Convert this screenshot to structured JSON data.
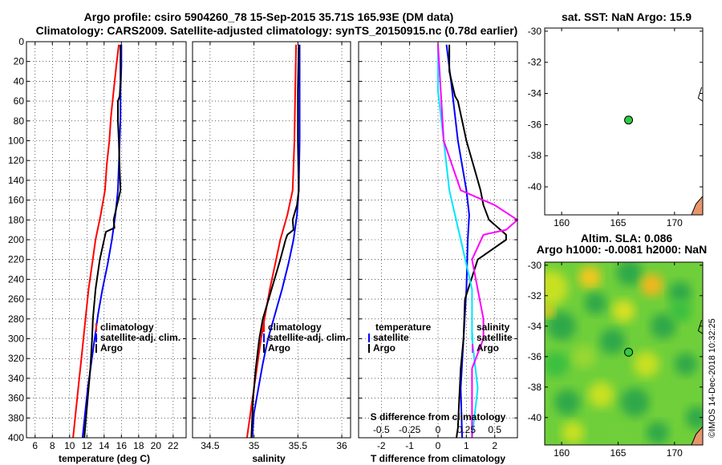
{
  "header": {
    "line1": "Argo profile: csiro 5904260_78 15-Sep-2015 35.71S 165.93E (DM data)",
    "line2": "Climatology: CARS2009. Satellite-adjusted climatology: synTS_20150915.nc (0.78d earlier)"
  },
  "watermark": "©IMOS 14-Dec-2018 10:32:25",
  "colors": {
    "climatology": "#ff0000",
    "satellite": "#0000ff",
    "argo": "#000000",
    "satellite_t": "#00e5ff",
    "satellite_s": "#ff00ff",
    "float_marker": "#2ecc40",
    "land": "#e8956b"
  },
  "chart_data": [
    {
      "id": "temperature",
      "type": "line",
      "xlabel": "temperature (deg C)",
      "ylabel": "",
      "xlim": [
        5,
        23.5
      ],
      "ylim": [
        400,
        0
      ],
      "xticks": [
        "6",
        "8",
        "10",
        "12",
        "14",
        "16",
        "18",
        "20",
        "22"
      ],
      "xtick_values": [
        6,
        8,
        10,
        12,
        14,
        16,
        18,
        20,
        22
      ],
      "yticks": [
        "0",
        "20",
        "40",
        "60",
        "80",
        "100",
        "120",
        "140",
        "160",
        "180",
        "200",
        "220",
        "240",
        "260",
        "280",
        "300",
        "320",
        "340",
        "360",
        "380",
        "400"
      ],
      "ytick_values": [
        0,
        20,
        40,
        60,
        80,
        100,
        120,
        140,
        160,
        180,
        200,
        220,
        240,
        260,
        280,
        300,
        320,
        340,
        360,
        380,
        400
      ],
      "legend": [
        "climatology",
        "satellite-adj. clim.",
        "Argo"
      ],
      "series": [
        {
          "name": "climatology",
          "color": "#ff0000",
          "depth": [
            3,
            25,
            50,
            75,
            100,
            125,
            150,
            175,
            200,
            225,
            250,
            275,
            300,
            325,
            350,
            375,
            400
          ],
          "values": [
            15.7,
            15.4,
            15.1,
            14.8,
            14.6,
            14.3,
            14.1,
            13.6,
            13.0,
            12.6,
            12.2,
            11.9,
            11.6,
            11.3,
            11.0,
            10.7,
            10.4
          ]
        },
        {
          "name": "satellite-adj. clim.",
          "color": "#0000ff",
          "depth": [
            3,
            25,
            50,
            75,
            100,
            125,
            150,
            175,
            200,
            225,
            250,
            275,
            300,
            325,
            350,
            375,
            400
          ],
          "values": [
            16.0,
            16.0,
            15.9,
            15.9,
            15.8,
            15.7,
            15.6,
            15.3,
            14.9,
            14.4,
            13.8,
            13.3,
            12.9,
            12.5,
            12.1,
            11.8,
            11.5
          ]
        },
        {
          "name": "Argo",
          "color": "#000000",
          "depth": [
            3,
            20,
            40,
            55,
            60,
            80,
            100,
            130,
            150,
            165,
            180,
            188,
            192,
            200,
            220,
            250,
            280,
            300,
            330,
            360,
            380,
            400
          ],
          "values": [
            15.9,
            15.9,
            15.9,
            15.8,
            15.6,
            15.6,
            15.7,
            15.8,
            15.9,
            15.5,
            15.1,
            15.2,
            14.2,
            14.0,
            13.5,
            13.0,
            12.7,
            12.6,
            12.4,
            12.1,
            11.9,
            11.7
          ]
        }
      ]
    },
    {
      "id": "salinity",
      "type": "line",
      "xlabel": "salinity",
      "ylabel": "",
      "xlim": [
        34.3,
        36.1
      ],
      "ylim": [
        400,
        0
      ],
      "xticks": [
        "34.5",
        "35",
        "35.5",
        "36"
      ],
      "xtick_values": [
        34.5,
        35,
        35.5,
        36
      ],
      "legend": [
        "climatology",
        "satellite-adj. clim.",
        "Argo"
      ],
      "series": [
        {
          "name": "climatology",
          "color": "#ff0000",
          "depth": [
            3,
            50,
            100,
            150,
            175,
            200,
            225,
            250,
            275,
            300,
            325,
            350,
            375,
            400
          ],
          "values": [
            35.48,
            35.47,
            35.46,
            35.44,
            35.38,
            35.3,
            35.24,
            35.18,
            35.13,
            35.08,
            35.04,
            35.0,
            34.96,
            34.92
          ]
        },
        {
          "name": "satellite-adj. clim.",
          "color": "#0000ff",
          "depth": [
            3,
            50,
            100,
            150,
            175,
            200,
            225,
            250,
            275,
            300,
            325,
            350,
            375,
            400
          ],
          "values": [
            35.52,
            35.52,
            35.52,
            35.51,
            35.49,
            35.45,
            35.39,
            35.32,
            35.24,
            35.16,
            35.1,
            35.05,
            35.0,
            34.98
          ]
        },
        {
          "name": "Argo",
          "color": "#000000",
          "depth": [
            3,
            50,
            100,
            150,
            165,
            180,
            190,
            195,
            200,
            220,
            250,
            280,
            300,
            330,
            360,
            380,
            400
          ],
          "values": [
            35.51,
            35.5,
            35.5,
            35.51,
            35.49,
            35.44,
            35.45,
            35.38,
            35.36,
            35.3,
            35.2,
            35.1,
            35.06,
            35.02,
            34.99,
            34.98,
            34.97
          ]
        }
      ]
    },
    {
      "id": "difference",
      "type": "line",
      "xlabel": "T difference from climatology",
      "x2label": "S difference from climatology",
      "xlim": [
        -2.8,
        2.8
      ],
      "ylim": [
        400,
        0
      ],
      "xticks": [
        "-2",
        "-1",
        "0",
        "1",
        "2"
      ],
      "xtick_values": [
        -2,
        -1,
        0,
        1,
        2
      ],
      "x2ticks": [
        "-0.5",
        "-0.25",
        "0",
        "0.25",
        "0.5"
      ],
      "x2tick_values": [
        -0.5,
        -0.25,
        0,
        0.25,
        0.5
      ],
      "legend_temperature_title": "temperature",
      "legend_salinity_title": "salinity",
      "legend_entries": [
        "satellite",
        "Argo"
      ],
      "series": [
        {
          "name": "T satellite",
          "color": "#0000ff",
          "depth": [
            3,
            50,
            100,
            150,
            175,
            200,
            250,
            300,
            350,
            400
          ],
          "values": [
            0.3,
            0.5,
            0.7,
            1.0,
            1.1,
            1.05,
            1.0,
            0.9,
            0.8,
            0.85
          ]
        },
        {
          "name": "T Argo",
          "color": "#000000",
          "depth": [
            3,
            30,
            55,
            60,
            100,
            130,
            150,
            165,
            180,
            190,
            195,
            200,
            220,
            260,
            300,
            330,
            360,
            390,
            400
          ],
          "values": [
            0.4,
            0.4,
            0.6,
            0.7,
            1.0,
            1.3,
            1.5,
            1.6,
            1.8,
            2.2,
            2.4,
            2.4,
            1.4,
            0.95,
            0.9,
            0.8,
            0.75,
            0.7,
            0.65
          ]
        },
        {
          "name": "S satellite",
          "color": "#00e5ff",
          "depth": [
            3,
            50,
            100,
            150,
            200,
            250,
            300,
            350,
            400
          ],
          "values": [
            0.0,
            0.0,
            0.05,
            0.1,
            0.2,
            0.3,
            0.3,
            0.35,
            0.3
          ]
        },
        {
          "name": "S Argo",
          "color": "#ff00ff",
          "depth": [
            3,
            100,
            150,
            165,
            180,
            190,
            195,
            220,
            250,
            280,
            300,
            330,
            360,
            400
          ],
          "values": [
            0.0,
            0.05,
            0.2,
            0.5,
            0.7,
            0.6,
            0.4,
            0.3,
            0.35,
            0.4,
            0.4,
            0.3,
            0.3,
            0.3
          ]
        }
      ]
    },
    {
      "id": "sst_map",
      "type": "scatter",
      "title": "sat. SST: NaN Argo: 15.9",
      "xlim": [
        158.5,
        172.5
      ],
      "ylim": [
        -41.8,
        -29.8
      ],
      "xticks": [
        "160",
        "165",
        "170"
      ],
      "xtick_values": [
        160,
        165,
        170
      ],
      "yticks": [
        "-30",
        "-32",
        "-34",
        "-36",
        "-38",
        "-40"
      ],
      "ytick_values": [
        -30,
        -32,
        -34,
        -36,
        -38,
        -40
      ],
      "point": {
        "lon": 165.93,
        "lat": -35.71
      }
    },
    {
      "id": "sla_map",
      "type": "heatmap",
      "title": "Altim. SLA: 0.086",
      "subtitle": "Argo h1000: -0.0081 h2000: NaN",
      "xlim": [
        158.5,
        172.5
      ],
      "ylim": [
        -41.8,
        -29.8
      ],
      "xticks": [
        "160",
        "165",
        "170"
      ],
      "xtick_values": [
        160,
        165,
        170
      ],
      "yticks": [
        "-30",
        "-32",
        "-34",
        "-36",
        "-38",
        "-40"
      ],
      "ytick_values": [
        -30,
        -32,
        -34,
        -36,
        -38,
        -40
      ],
      "point": {
        "lon": 165.93,
        "lat": -35.71
      }
    }
  ]
}
